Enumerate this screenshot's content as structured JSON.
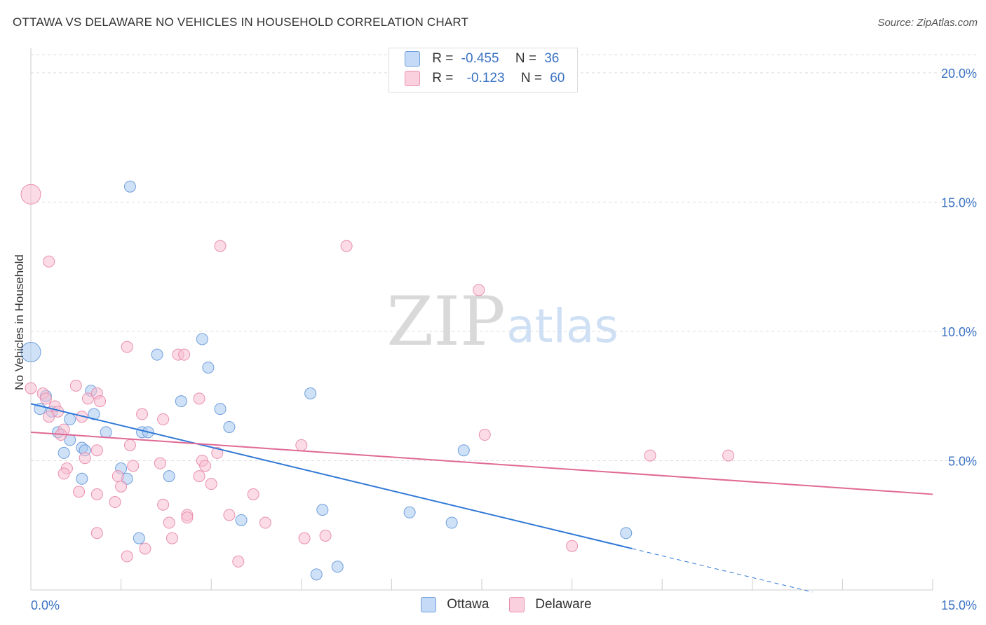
{
  "title": "OTTAWA VS DELAWARE NO VEHICLES IN HOUSEHOLD CORRELATION CHART",
  "source": "Source: ZipAtlas.com",
  "watermark": {
    "zip": "ZIP",
    "atlas": "atlas"
  },
  "legend": {
    "rows": [
      {
        "r_label": "R =",
        "r_value": "-0.455",
        "n_label": "N =",
        "n_value": "36"
      },
      {
        "r_label": "R =",
        "r_value": "-0.123",
        "n_label": "N =",
        "n_value": "60"
      }
    ]
  },
  "colors": {
    "ottawa_fill": "#a8c8f0",
    "ottawa_stroke": "#6f9fdc",
    "ottawa_line": "#2f78d6",
    "delaware_fill": "#f8bfd2",
    "delaware_stroke": "#e98fb0",
    "delaware_line": "#e06995",
    "tick_label": "#3a72c4",
    "grid": "#dddddd"
  },
  "chart_data": {
    "type": "scatter",
    "title": "OTTAWA VS DELAWARE NO VEHICLES IN HOUSEHOLD CORRELATION CHART",
    "xlabel": "",
    "ylabel": "No Vehicles in Household",
    "xlim": [
      0,
      15
    ],
    "ylim": [
      0,
      20.7
    ],
    "x_tick_labels": [
      "0.0%",
      "15.0%"
    ],
    "y_ticks": [
      5,
      10,
      15,
      20
    ],
    "y_tick_labels": [
      "5.0%",
      "10.0%",
      "15.0%",
      "20.0%"
    ],
    "grid": true,
    "legend_position": "bottom",
    "series": [
      {
        "name": "Ottawa",
        "r": -0.455,
        "n": 36,
        "trend": {
          "x0": 0,
          "y0": 7.2,
          "x1": 10.0,
          "y1": 1.6,
          "dashed_to_x": 13.0,
          "dashed_to_y": -0.08
        },
        "points": [
          [
            0.0,
            9.2,
            14
          ],
          [
            1.65,
            15.6,
            8
          ],
          [
            0.15,
            7.0,
            8
          ],
          [
            0.25,
            7.5,
            8
          ],
          [
            0.35,
            6.9,
            8
          ],
          [
            0.45,
            6.1,
            8
          ],
          [
            0.65,
            5.8,
            8
          ],
          [
            0.55,
            5.3,
            8
          ],
          [
            0.65,
            6.6,
            8
          ],
          [
            0.85,
            5.5,
            8
          ],
          [
            0.9,
            5.4,
            8
          ],
          [
            1.0,
            7.7,
            8
          ],
          [
            1.25,
            6.1,
            8
          ],
          [
            1.05,
            6.8,
            8
          ],
          [
            0.85,
            4.3,
            8
          ],
          [
            1.5,
            4.7,
            8
          ],
          [
            1.6,
            4.3,
            8
          ],
          [
            1.8,
            2.0,
            8
          ],
          [
            1.85,
            6.1,
            8
          ],
          [
            1.95,
            6.1,
            8
          ],
          [
            2.1,
            9.1,
            8
          ],
          [
            2.3,
            4.4,
            8
          ],
          [
            2.5,
            7.3,
            8
          ],
          [
            2.85,
            9.7,
            8
          ],
          [
            2.95,
            8.6,
            8
          ],
          [
            3.15,
            7.0,
            8
          ],
          [
            3.3,
            6.3,
            8
          ],
          [
            3.5,
            2.7,
            8
          ],
          [
            4.65,
            7.6,
            8
          ],
          [
            4.85,
            3.1,
            8
          ],
          [
            4.75,
            0.6,
            8
          ],
          [
            5.1,
            0.9,
            8
          ],
          [
            6.3,
            3.0,
            8
          ],
          [
            7.0,
            2.6,
            8
          ],
          [
            7.2,
            5.4,
            8
          ],
          [
            9.9,
            2.2,
            8
          ]
        ]
      },
      {
        "name": "Delaware",
        "r": -0.123,
        "n": 60,
        "trend": {
          "x0": 0,
          "y0": 6.1,
          "x1": 15.0,
          "y1": 3.7
        },
        "points": [
          [
            0.0,
            15.3,
            14
          ],
          [
            0.0,
            7.8,
            8
          ],
          [
            0.2,
            7.6,
            8
          ],
          [
            0.25,
            7.4,
            8
          ],
          [
            0.3,
            6.7,
            8
          ],
          [
            0.4,
            7.1,
            8
          ],
          [
            0.45,
            6.9,
            8
          ],
          [
            0.3,
            12.7,
            8
          ],
          [
            0.55,
            6.2,
            8
          ],
          [
            0.5,
            6.0,
            8
          ],
          [
            0.6,
            4.7,
            8
          ],
          [
            0.55,
            4.5,
            8
          ],
          [
            0.75,
            7.9,
            8
          ],
          [
            0.8,
            3.8,
            8
          ],
          [
            0.9,
            5.1,
            8
          ],
          [
            0.85,
            6.7,
            8
          ],
          [
            0.95,
            7.4,
            8
          ],
          [
            1.1,
            7.6,
            8
          ],
          [
            1.15,
            7.3,
            8
          ],
          [
            1.1,
            5.4,
            8
          ],
          [
            1.1,
            2.2,
            8
          ],
          [
            1.1,
            3.7,
            8
          ],
          [
            1.4,
            3.4,
            8
          ],
          [
            1.45,
            4.4,
            8
          ],
          [
            1.5,
            4.0,
            8
          ],
          [
            1.6,
            9.4,
            8
          ],
          [
            1.65,
            5.6,
            8
          ],
          [
            1.7,
            4.8,
            8
          ],
          [
            1.85,
            6.8,
            8
          ],
          [
            1.6,
            1.3,
            8
          ],
          [
            1.9,
            1.6,
            8
          ],
          [
            2.15,
            4.9,
            8
          ],
          [
            2.2,
            6.6,
            8
          ],
          [
            2.2,
            3.3,
            8
          ],
          [
            2.3,
            2.6,
            8
          ],
          [
            2.35,
            2.0,
            8
          ],
          [
            2.45,
            9.1,
            8
          ],
          [
            2.55,
            9.1,
            8
          ],
          [
            2.6,
            2.9,
            8
          ],
          [
            2.6,
            2.8,
            8
          ],
          [
            2.8,
            4.4,
            8
          ],
          [
            2.8,
            7.4,
            8
          ],
          [
            2.85,
            5.0,
            8
          ],
          [
            2.9,
            4.8,
            8
          ],
          [
            3.0,
            4.1,
            8
          ],
          [
            3.1,
            5.3,
            8
          ],
          [
            3.15,
            13.3,
            8
          ],
          [
            3.3,
            2.9,
            8
          ],
          [
            3.45,
            1.1,
            8
          ],
          [
            3.7,
            3.7,
            8
          ],
          [
            3.9,
            2.6,
            8
          ],
          [
            4.5,
            5.6,
            8
          ],
          [
            4.55,
            2.0,
            8
          ],
          [
            4.9,
            2.1,
            8
          ],
          [
            5.25,
            13.3,
            8
          ],
          [
            7.45,
            11.6,
            8
          ],
          [
            7.55,
            6.0,
            8
          ],
          [
            9.0,
            1.7,
            8
          ],
          [
            10.3,
            5.2,
            8
          ],
          [
            11.6,
            5.2,
            8
          ]
        ]
      }
    ]
  },
  "bottom_legend": {
    "ottawa": "Ottawa",
    "delaware": "Delaware"
  }
}
